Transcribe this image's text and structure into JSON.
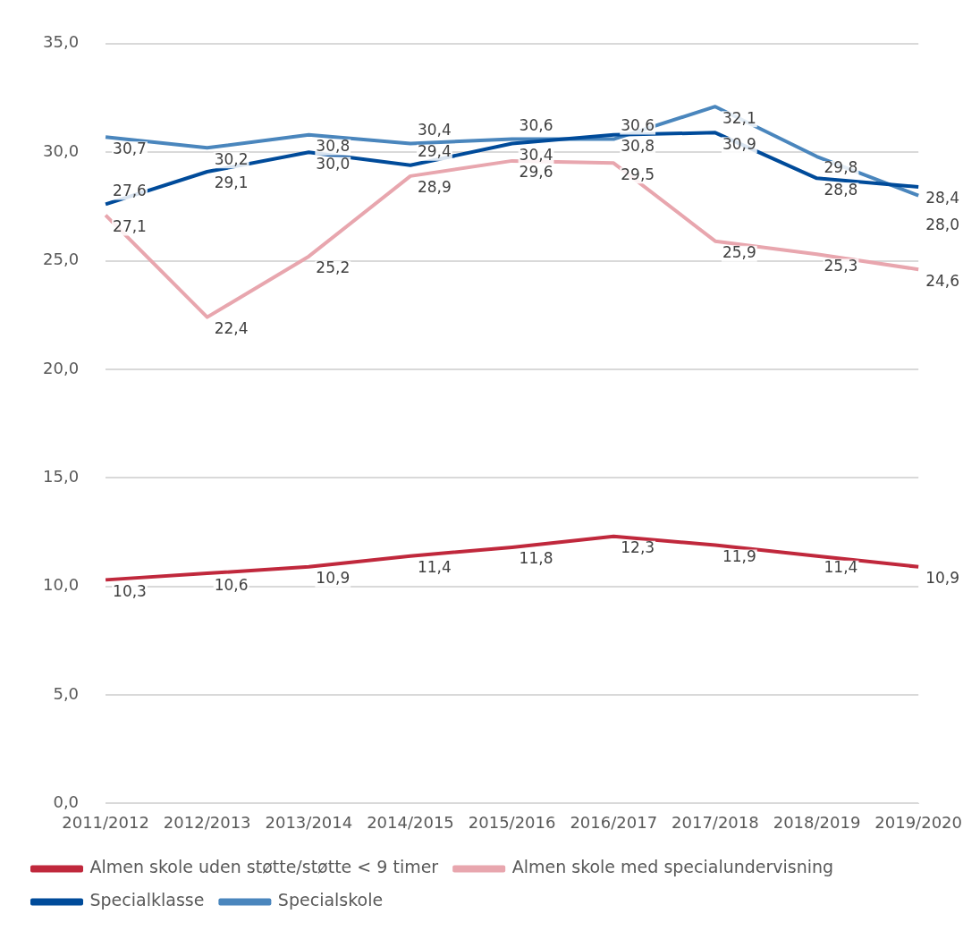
{
  "chart_data": {
    "type": "line",
    "categories": [
      "2011/2012",
      "2012/2013",
      "2013/2014",
      "2014/2015",
      "2015/2016",
      "2016/2017",
      "2017/2018",
      "2018/2019",
      "2019/2020"
    ],
    "series": [
      {
        "name": "Almen skole uden støtte/støtte < 9 timer",
        "color": "#c0283c",
        "values": [
          10.3,
          10.6,
          10.9,
          11.4,
          11.8,
          12.3,
          11.9,
          11.4,
          10.9
        ],
        "value_labels": [
          "10,3",
          "10,6",
          "10,9",
          "11,4",
          "11,8",
          "12,3",
          "11,9",
          "11,4",
          "10,9"
        ]
      },
      {
        "name": "Almen skole med specialundervisning",
        "color": "#e8a6ae",
        "values": [
          27.1,
          22.4,
          25.2,
          28.9,
          29.6,
          29.5,
          25.9,
          25.3,
          24.6
        ],
        "value_labels": [
          "27,1",
          "22,4",
          "25,2",
          "28,9",
          "29,6",
          "29,5",
          "25,9",
          "25,3",
          "24,6"
        ]
      },
      {
        "name": "Specialklasse",
        "color": "#004b9a",
        "values": [
          27.6,
          29.1,
          30.0,
          29.4,
          30.4,
          30.8,
          30.9,
          28.8,
          28.4
        ],
        "value_labels": [
          "27,6",
          "29,1",
          "30,0",
          "29,4",
          "30,4",
          "30,8",
          "30,9",
          "28,8",
          "28,4"
        ]
      },
      {
        "name": "Specialskole",
        "color": "#4a86bd",
        "values": [
          30.7,
          30.2,
          30.8,
          30.4,
          30.6,
          30.6,
          32.1,
          29.8,
          28.0
        ],
        "value_labels": [
          "30,7",
          "30,2",
          "30,8",
          "30,4",
          "30,6",
          "30,6",
          "32,1",
          "29,8",
          "28,0"
        ]
      }
    ],
    "ylim": [
      0,
      35
    ],
    "yticks": [
      {
        "value": 0,
        "label": "0,0"
      },
      {
        "value": 5,
        "label": "5,0"
      },
      {
        "value": 10,
        "label": "10,0"
      },
      {
        "value": 15,
        "label": "15,0"
      },
      {
        "value": 20,
        "label": "20,0"
      },
      {
        "value": 25,
        "label": "25,0"
      },
      {
        "value": 30,
        "label": "30,0"
      },
      {
        "value": 35,
        "label": "35,0"
      }
    ],
    "grid": "y",
    "legend": "bottom",
    "marker": "none",
    "line_style": "solid"
  }
}
